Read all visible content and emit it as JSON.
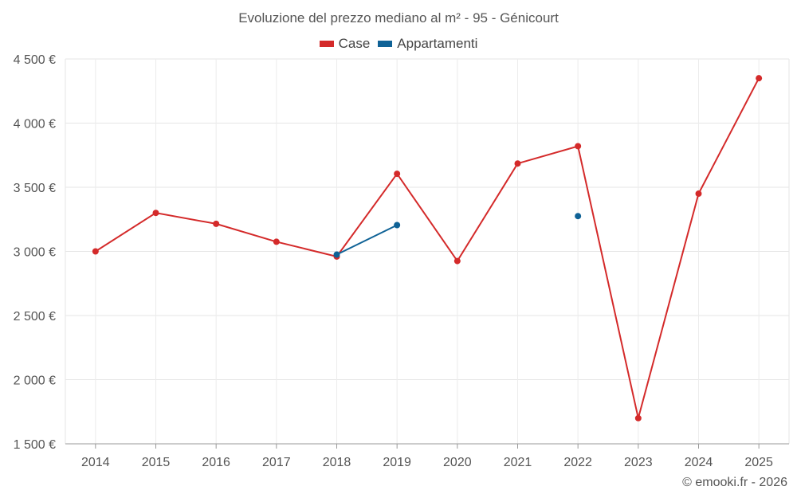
{
  "chart_data": {
    "type": "line",
    "title": "Evoluzione del prezzo mediano al m² - 95 - Génicourt",
    "categories": [
      "2014",
      "2015",
      "2016",
      "2017",
      "2018",
      "2019",
      "2020",
      "2021",
      "2022",
      "2023",
      "2024",
      "2025"
    ],
    "series": [
      {
        "name": "Case",
        "color": "#d42a2a",
        "values": [
          3000,
          3300,
          3215,
          3075,
          2960,
          3605,
          2925,
          3685,
          3820,
          1700,
          3450,
          4350
        ]
      },
      {
        "name": "Appartamenti",
        "color": "#0f6296",
        "values": [
          null,
          null,
          null,
          null,
          2975,
          3205,
          null,
          null,
          3275,
          null,
          null,
          null
        ]
      }
    ],
    "y_ticks": [
      1500,
      2000,
      2500,
      3000,
      3500,
      4000,
      4500
    ],
    "y_tick_labels": [
      "1 500 €",
      "2 000 €",
      "2 500 €",
      "3 000 €",
      "3 500 €",
      "4 000 €",
      "4 500 €"
    ],
    "ylim": [
      1500,
      4500
    ],
    "xlabel": "",
    "ylabel": "",
    "grid": true,
    "legend_position": "top-center"
  },
  "credit": "© emooki.fr - 2026"
}
